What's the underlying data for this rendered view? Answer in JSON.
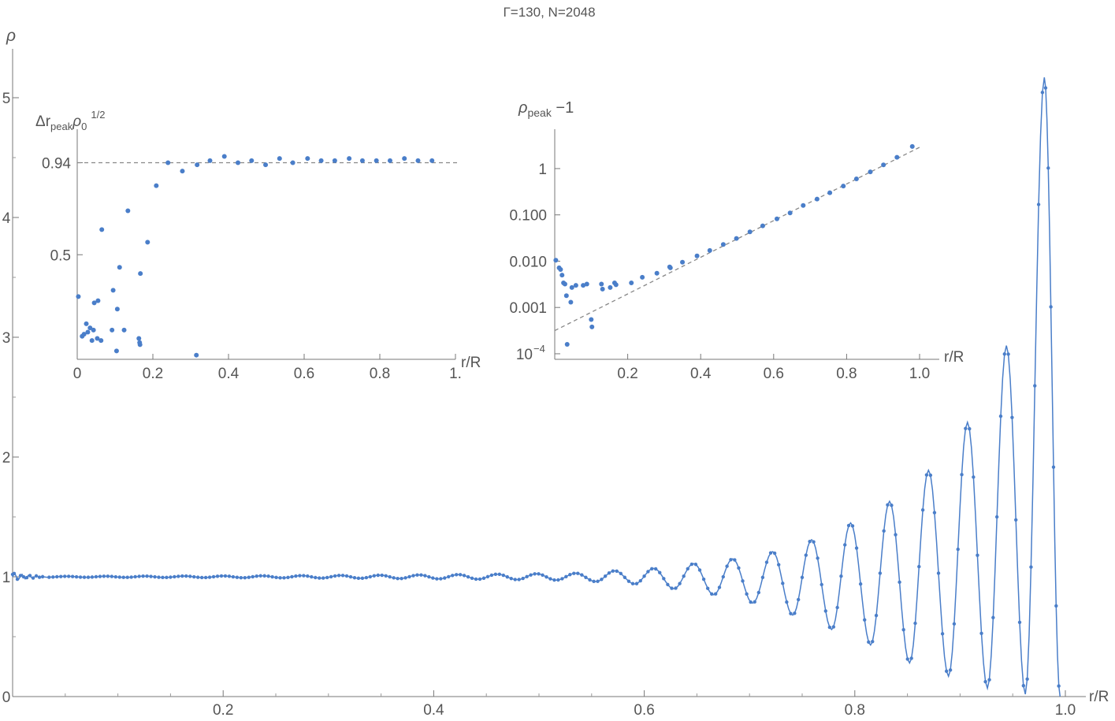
{
  "title": "Γ=130, N=2048",
  "colors": {
    "series": "#4a7ec9",
    "axis": "#777777",
    "text": "#555555",
    "fit_line": "#888888"
  },
  "chart_data": [
    {
      "id": "main",
      "type": "line",
      "ylabel": "ρ",
      "xlabel": "r/R",
      "xlim": [
        0,
        1.09
      ],
      "ylim": [
        0,
        5.3
      ],
      "x_ticks": [
        0.2,
        0.4,
        0.6,
        0.8,
        1.0
      ],
      "x_tick_labels": [
        "0.2",
        "0.4",
        "0.6",
        "0.8",
        "1.0"
      ],
      "y_ticks": [
        0,
        1,
        2,
        3,
        4,
        5
      ],
      "y_tick_labels": [
        "0",
        "1",
        "2",
        "3",
        "4",
        "5"
      ],
      "series": [
        {
          "description": "density profile: oscillations about 1 with growing amplitude toward the edge, dropping to 0 at r/R≈0.99",
          "peaks": [
            {
              "x": 0.98,
              "y": 5.17
            },
            {
              "x": 0.944,
              "y": 2.93
            },
            {
              "x": 0.907,
              "y": 2.29
            },
            {
              "x": 0.87,
              "y": 1.89
            },
            {
              "x": 0.833,
              "y": 1.63
            },
            {
              "x": 0.796,
              "y": 1.45
            },
            {
              "x": 0.759,
              "y": 1.31
            },
            {
              "x": 0.722,
              "y": 1.21
            },
            {
              "x": 0.684,
              "y": 1.15
            },
            {
              "x": 0.647,
              "y": 1.11
            },
            {
              "x": 0.609,
              "y": 1.07
            },
            {
              "x": 0.572,
              "y": 1.05
            },
            {
              "x": 0.535,
              "y": 1.03
            }
          ],
          "troughs": [
            {
              "x": 0.962,
              "y": 0.02
            },
            {
              "x": 0.926,
              "y": 0.07
            },
            {
              "x": 0.889,
              "y": 0.17
            },
            {
              "x": 0.852,
              "y": 0.28
            },
            {
              "x": 0.815,
              "y": 0.43
            },
            {
              "x": 0.778,
              "y": 0.56
            },
            {
              "x": 0.741,
              "y": 0.68
            },
            {
              "x": 0.703,
              "y": 0.78
            },
            {
              "x": 0.666,
              "y": 0.85
            },
            {
              "x": 0.628,
              "y": 0.9
            },
            {
              "x": 0.591,
              "y": 0.94
            },
            {
              "x": 0.554,
              "y": 0.96
            }
          ],
          "edge": 0.995
        }
      ]
    },
    {
      "id": "inset-left",
      "type": "scatter",
      "ylabel_main": "Δr",
      "ylabel_sub1": "peak",
      "ylabel_mid": "ρ",
      "ylabel_sub2": "0",
      "ylabel_sup": "1/2",
      "xlabel": "r/R",
      "xlim": [
        0,
        1.0
      ],
      "ylim": [
        0.0,
        1.1
      ],
      "x_ticks": [
        0,
        0.2,
        0.4,
        0.6,
        0.8,
        1.0
      ],
      "x_tick_labels": [
        "0",
        "0.2",
        "0.4",
        "0.6",
        "0.8",
        "1."
      ],
      "y_ticks": [
        0.94,
        0.5
      ],
      "y_tick_labels": [
        "0.94",
        "0.5"
      ],
      "reference_line": 0.94,
      "points": [
        [
          0.003,
          0.3
        ],
        [
          0.013,
          0.11
        ],
        [
          0.018,
          0.12
        ],
        [
          0.024,
          0.17
        ],
        [
          0.028,
          0.13
        ],
        [
          0.034,
          0.15
        ],
        [
          0.039,
          0.09
        ],
        [
          0.043,
          0.14
        ],
        [
          0.045,
          0.27
        ],
        [
          0.053,
          0.1
        ],
        [
          0.055,
          0.28
        ],
        [
          0.063,
          0.09
        ],
        [
          0.065,
          0.62
        ],
        [
          0.092,
          0.14
        ],
        [
          0.095,
          0.33
        ],
        [
          0.104,
          0.04
        ],
        [
          0.106,
          0.24
        ],
        [
          0.112,
          0.44
        ],
        [
          0.124,
          0.14
        ],
        [
          0.134,
          0.71
        ],
        [
          0.163,
          0.1
        ],
        [
          0.165,
          0.08
        ],
        [
          0.166,
          0.07
        ],
        [
          0.167,
          0.41
        ],
        [
          0.186,
          0.56
        ],
        [
          0.209,
          0.83
        ],
        [
          0.24,
          0.94
        ],
        [
          0.278,
          0.9
        ],
        [
          0.315,
          0.02
        ],
        [
          0.317,
          0.93
        ],
        [
          0.351,
          0.95
        ],
        [
          0.389,
          0.97
        ],
        [
          0.425,
          0.94
        ],
        [
          0.461,
          0.95
        ],
        [
          0.498,
          0.93
        ],
        [
          0.535,
          0.96
        ],
        [
          0.57,
          0.94
        ],
        [
          0.609,
          0.96
        ],
        [
          0.645,
          0.95
        ],
        [
          0.681,
          0.95
        ],
        [
          0.719,
          0.96
        ],
        [
          0.754,
          0.95
        ],
        [
          0.791,
          0.95
        ],
        [
          0.827,
          0.95
        ],
        [
          0.865,
          0.96
        ],
        [
          0.901,
          0.95
        ],
        [
          0.938,
          0.95
        ]
      ]
    },
    {
      "id": "inset-right",
      "type": "scatter",
      "log_y": true,
      "ylabel_main": "ρ",
      "ylabel_sub": "peak",
      "ylabel_rest": " −1",
      "xlabel": "r/R",
      "xlim": [
        0,
        1.06
      ],
      "ylim_log10": [
        -4.12,
        0.85
      ],
      "x_ticks": [
        0.2,
        0.4,
        0.6,
        0.8,
        1.0
      ],
      "x_tick_labels": [
        "0.2",
        "0.4",
        "0.6",
        "0.8",
        "1.0"
      ],
      "y_ticks_log10": [
        0,
        -1,
        -2,
        -3,
        -4
      ],
      "y_tick_labels": [
        "1",
        "0.100",
        "0.010",
        "0.001",
        "10"
      ],
      "y_tick_exponent": "−4",
      "fit_line_log10": {
        "x0": 0.0,
        "y0": -3.5,
        "x1": 1.0,
        "y1": 0.46
      },
      "points": [
        [
          0.003,
          0.0105
        ],
        [
          0.012,
          0.0072
        ],
        [
          0.016,
          0.0066
        ],
        [
          0.02,
          0.005
        ],
        [
          0.024,
          0.0034
        ],
        [
          0.028,
          0.0032
        ],
        [
          0.032,
          0.0018
        ],
        [
          0.034,
          0.00016
        ],
        [
          0.044,
          0.0013
        ],
        [
          0.047,
          0.0027
        ],
        [
          0.058,
          0.003
        ],
        [
          0.078,
          0.003
        ],
        [
          0.088,
          0.0032
        ],
        [
          0.1,
          0.00055
        ],
        [
          0.102,
          0.00038
        ],
        [
          0.128,
          0.0032
        ],
        [
          0.131,
          0.0025
        ],
        [
          0.152,
          0.0027
        ],
        [
          0.164,
          0.0034
        ],
        [
          0.168,
          0.0031
        ],
        [
          0.21,
          0.0034
        ],
        [
          0.24,
          0.0045
        ],
        [
          0.28,
          0.0055
        ],
        [
          0.315,
          0.0075
        ],
        [
          0.317,
          0.0072
        ],
        [
          0.35,
          0.0095
        ],
        [
          0.39,
          0.013
        ],
        [
          0.425,
          0.017
        ],
        [
          0.462,
          0.023
        ],
        [
          0.498,
          0.031
        ],
        [
          0.535,
          0.043
        ],
        [
          0.57,
          0.058
        ],
        [
          0.609,
          0.082
        ],
        [
          0.645,
          0.11
        ],
        [
          0.681,
          0.16
        ],
        [
          0.719,
          0.22
        ],
        [
          0.754,
          0.3
        ],
        [
          0.791,
          0.42
        ],
        [
          0.827,
          0.6
        ],
        [
          0.865,
          0.85
        ],
        [
          0.901,
          1.2
        ],
        [
          0.938,
          1.75
        ],
        [
          0.98,
          3.0
        ]
      ]
    }
  ]
}
